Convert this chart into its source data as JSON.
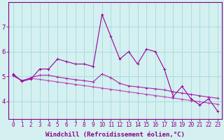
{
  "line1": [
    5.1,
    4.8,
    4.9,
    5.3,
    5.3,
    5.7,
    5.6,
    5.5,
    5.5,
    5.4,
    7.5,
    6.6,
    5.7,
    6.0,
    5.5,
    6.1,
    6.0,
    5.3,
    4.2,
    4.6,
    4.1,
    3.85,
    4.1,
    3.6
  ],
  "line2": [
    5.05,
    4.82,
    4.95,
    5.05,
    5.05,
    4.98,
    4.92,
    4.87,
    4.83,
    4.78,
    5.1,
    4.95,
    4.72,
    4.62,
    4.58,
    4.54,
    4.5,
    4.46,
    4.38,
    4.33,
    4.28,
    4.22,
    4.17,
    4.12
  ],
  "line3": [
    5.02,
    4.84,
    4.92,
    4.88,
    4.83,
    4.78,
    4.73,
    4.68,
    4.63,
    4.58,
    4.53,
    4.48,
    4.43,
    4.38,
    4.33,
    4.28,
    4.23,
    4.18,
    4.13,
    4.08,
    4.03,
    3.98,
    3.93,
    3.88
  ],
  "color1": "#990099",
  "color2": "#aa22aa",
  "color3": "#bb44bb",
  "bg_color": "#d4f0f0",
  "grid_color": "#aadddd",
  "axis_color": "#880088",
  "xlabel": "Windchill (Refroidissement éolien,°C)",
  "xlabel_fontsize": 6.5,
  "tick_fontsize": 5.5,
  "ylim": [
    3.3,
    8.0
  ],
  "yticks": [
    4,
    5,
    6,
    7
  ],
  "xticks": [
    0,
    1,
    2,
    3,
    4,
    5,
    6,
    7,
    8,
    9,
    10,
    11,
    12,
    13,
    14,
    15,
    16,
    17,
    18,
    19,
    20,
    21,
    22,
    23
  ]
}
